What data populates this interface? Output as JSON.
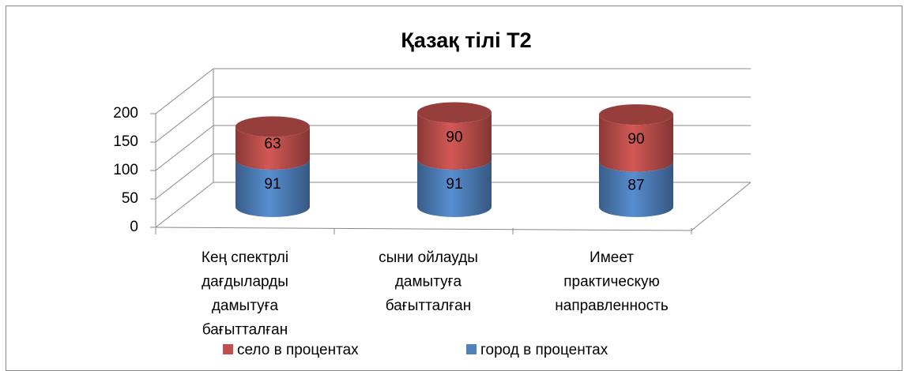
{
  "chart_data": {
    "type": "bar3d_cylinder_stacked",
    "title": "Қазақ тілі  Т2",
    "categories": [
      "Кең спектрлі\nдағдыларды\nдамытуға\nбағытталған",
      "сыни ойлауды\nдамытуға\nбағытталған",
      "Имеет\nпрактическую\nнаправленность"
    ],
    "series": [
      {
        "name": "город в процентах",
        "color": "#4f81bd",
        "values": [
          91,
          91,
          87
        ]
      },
      {
        "name": "село в процентах",
        "color": "#c0504d",
        "values": [
          63,
          90,
          90
        ]
      }
    ],
    "ylim": [
      0,
      200
    ],
    "yticks": [
      0,
      50,
      100,
      150,
      200
    ],
    "grid": true,
    "legend": "bottom"
  }
}
